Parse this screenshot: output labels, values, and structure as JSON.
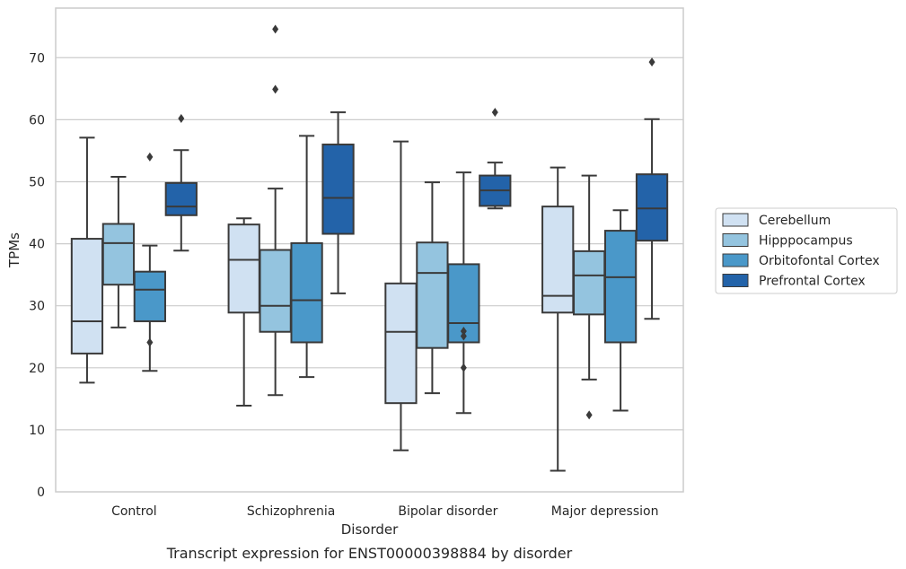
{
  "chart_data": {
    "type": "box",
    "title": "",
    "caption": "Transcript expression for ENST00000398884 by disorder",
    "xlabel": "Disorder",
    "ylabel": "TPMs",
    "ylim": [
      0,
      78
    ],
    "yticks": [
      0,
      10,
      20,
      30,
      40,
      50,
      60,
      70
    ],
    "grid": "horizontal",
    "legend_position": "right",
    "categories": [
      "Control",
      "Schizophrenia",
      "Bipolar disorder",
      "Major depression"
    ],
    "series": [
      {
        "name": "Cerebellum",
        "color": "#d0e1f2",
        "boxes": [
          {
            "whisker_low": 17.6,
            "q1": 22.3,
            "median": 27.5,
            "q3": 40.8,
            "whisker_high": 57.1,
            "outliers": []
          },
          {
            "whisker_low": 13.9,
            "q1": 28.9,
            "median": 37.4,
            "q3": 43.1,
            "whisker_high": 44.1,
            "outliers": []
          },
          {
            "whisker_low": 6.7,
            "q1": 14.3,
            "median": 25.8,
            "q3": 33.6,
            "whisker_high": 56.5,
            "outliers": []
          },
          {
            "whisker_low": 3.4,
            "q1": 28.9,
            "median": 31.6,
            "q3": 46.0,
            "whisker_high": 52.3,
            "outliers": []
          }
        ]
      },
      {
        "name": "Hipppocampus",
        "color": "#94c4df",
        "boxes": [
          {
            "whisker_low": 26.5,
            "q1": 33.4,
            "median": 40.1,
            "q3": 43.2,
            "whisker_high": 50.8,
            "outliers": []
          },
          {
            "whisker_low": 15.6,
            "q1": 25.8,
            "median": 30.0,
            "q3": 39.0,
            "whisker_high": 48.9,
            "outliers": [
              64.9,
              74.6
            ]
          },
          {
            "whisker_low": 15.9,
            "q1": 23.2,
            "median": 35.3,
            "q3": 40.2,
            "whisker_high": 49.9,
            "outliers": []
          },
          {
            "whisker_low": 18.1,
            "q1": 28.6,
            "median": 34.9,
            "q3": 38.8,
            "whisker_high": 51.0,
            "outliers": [
              12.4
            ]
          }
        ]
      },
      {
        "name": "Orbitofontal Cortex",
        "color": "#4a98c9",
        "boxes": [
          {
            "whisker_low": 19.5,
            "q1": 27.5,
            "median": 32.6,
            "q3": 35.5,
            "whisker_high": 39.7,
            "outliers": [
              24.1,
              54.0
            ]
          },
          {
            "whisker_low": 18.5,
            "q1": 24.1,
            "median": 30.9,
            "q3": 40.1,
            "whisker_high": 57.4,
            "outliers": []
          },
          {
            "whisker_low": 12.7,
            "q1": 24.1,
            "median": 27.2,
            "q3": 36.7,
            "whisker_high": 51.5,
            "outliers": [
              20.0,
              25.1,
              25.9
            ]
          },
          {
            "whisker_low": 13.1,
            "q1": 24.1,
            "median": 34.6,
            "q3": 42.1,
            "whisker_high": 45.4,
            "outliers": []
          }
        ]
      },
      {
        "name": "Prefrontal Cortex",
        "color": "#2363a9",
        "boxes": [
          {
            "whisker_low": 38.9,
            "q1": 44.6,
            "median": 46.0,
            "q3": 49.8,
            "whisker_high": 55.1,
            "outliers": [
              60.2
            ]
          },
          {
            "whisker_low": 32.0,
            "q1": 41.6,
            "median": 47.4,
            "q3": 56.0,
            "whisker_high": 61.2,
            "outliers": []
          },
          {
            "whisker_low": 45.7,
            "q1": 46.1,
            "median": 48.6,
            "q3": 51.0,
            "whisker_high": 53.1,
            "outliers": [
              61.2
            ]
          },
          {
            "whisker_low": 27.9,
            "q1": 40.5,
            "median": 45.7,
            "q3": 51.2,
            "whisker_high": 60.1,
            "outliers": [
              69.3
            ]
          }
        ]
      }
    ]
  }
}
